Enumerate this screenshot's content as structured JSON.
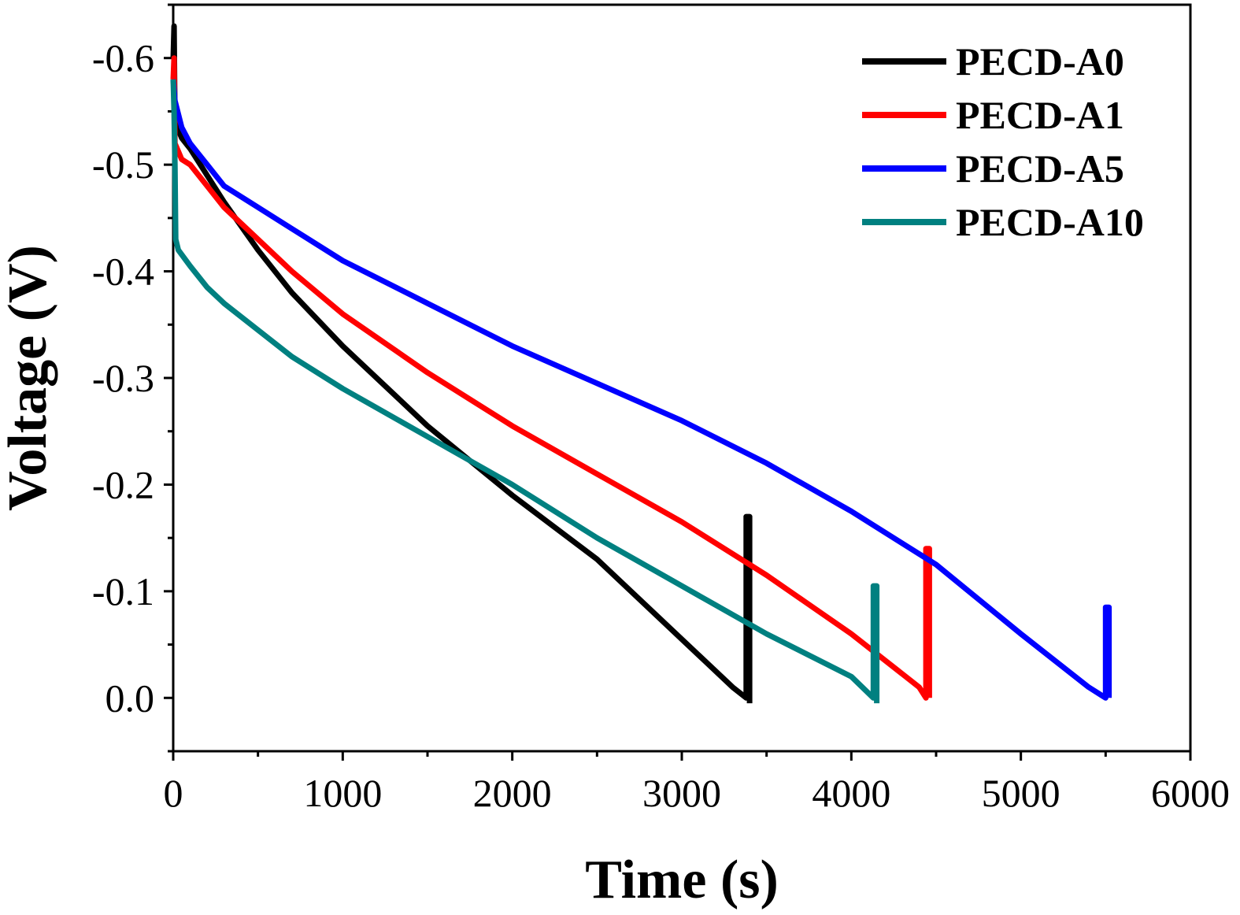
{
  "chart_data": {
    "type": "line",
    "xlabel": "Time (s)",
    "ylabel": "Voltage (V)",
    "xlim": [
      0,
      6000
    ],
    "ylim": [
      0.05,
      -0.65
    ],
    "y_axis_inverted": true,
    "x_ticks": [
      0,
      1000,
      2000,
      3000,
      4000,
      5000,
      6000
    ],
    "y_ticks": [
      0.0,
      -0.1,
      -0.2,
      -0.3,
      -0.4,
      -0.5,
      -0.6
    ],
    "x_tick_labels": [
      "0",
      "1000",
      "2000",
      "3000",
      "4000",
      "5000",
      "6000"
    ],
    "y_tick_labels": [
      "0.0",
      "-0.1",
      "-0.2",
      "-0.3",
      "-0.4",
      "-0.5",
      "-0.6"
    ],
    "grid": false,
    "legend_position": "top-right",
    "series": [
      {
        "name": "PECD-A0",
        "color": "#000000",
        "x": [
          0,
          5,
          10,
          50,
          100,
          200,
          300,
          500,
          700,
          1000,
          1500,
          2000,
          2500,
          3000,
          3300,
          3380,
          3380,
          3400,
          3400
        ],
        "y": [
          -0.6,
          -0.63,
          -0.54,
          -0.525,
          -0.515,
          -0.49,
          -0.465,
          -0.42,
          -0.38,
          -0.33,
          -0.255,
          -0.19,
          -0.13,
          -0.055,
          -0.01,
          0.0,
          -0.17,
          -0.17,
          0.005
        ]
      },
      {
        "name": "PECD-A1",
        "color": "#ff0000",
        "x": [
          0,
          5,
          10,
          50,
          100,
          200,
          300,
          500,
          700,
          1000,
          1500,
          2000,
          2500,
          3000,
          3500,
          4000,
          4400,
          4440,
          4440,
          4460,
          4460
        ],
        "y": [
          -0.58,
          -0.6,
          -0.52,
          -0.505,
          -0.5,
          -0.48,
          -0.46,
          -0.43,
          -0.4,
          -0.36,
          -0.305,
          -0.255,
          -0.21,
          -0.165,
          -0.115,
          -0.06,
          -0.01,
          0.0,
          -0.14,
          -0.14,
          0.0
        ]
      },
      {
        "name": "PECD-A5",
        "color": "#0000ff",
        "x": [
          0,
          5,
          10,
          50,
          100,
          200,
          300,
          500,
          700,
          1000,
          1500,
          2000,
          2500,
          3000,
          3500,
          4000,
          4500,
          5000,
          5400,
          5500,
          5500,
          5520,
          5520
        ],
        "y": [
          -0.58,
          -0.57,
          -0.56,
          -0.535,
          -0.52,
          -0.5,
          -0.48,
          -0.46,
          -0.44,
          -0.41,
          -0.37,
          -0.33,
          -0.295,
          -0.26,
          -0.22,
          -0.175,
          -0.125,
          -0.06,
          -0.01,
          0.0,
          -0.085,
          -0.085,
          0.0
        ]
      },
      {
        "name": "PECD-A10",
        "color": "#008080",
        "x": [
          0,
          5,
          10,
          15,
          30,
          100,
          200,
          300,
          500,
          700,
          1000,
          1500,
          2000,
          2500,
          3000,
          3500,
          4000,
          4130,
          4130,
          4150,
          4150
        ],
        "y": [
          -0.58,
          -0.55,
          -0.5,
          -0.43,
          -0.42,
          -0.405,
          -0.385,
          -0.37,
          -0.345,
          -0.32,
          -0.29,
          -0.245,
          -0.2,
          -0.15,
          -0.105,
          -0.06,
          -0.02,
          0.0,
          -0.105,
          -0.105,
          0.005
        ]
      }
    ]
  }
}
